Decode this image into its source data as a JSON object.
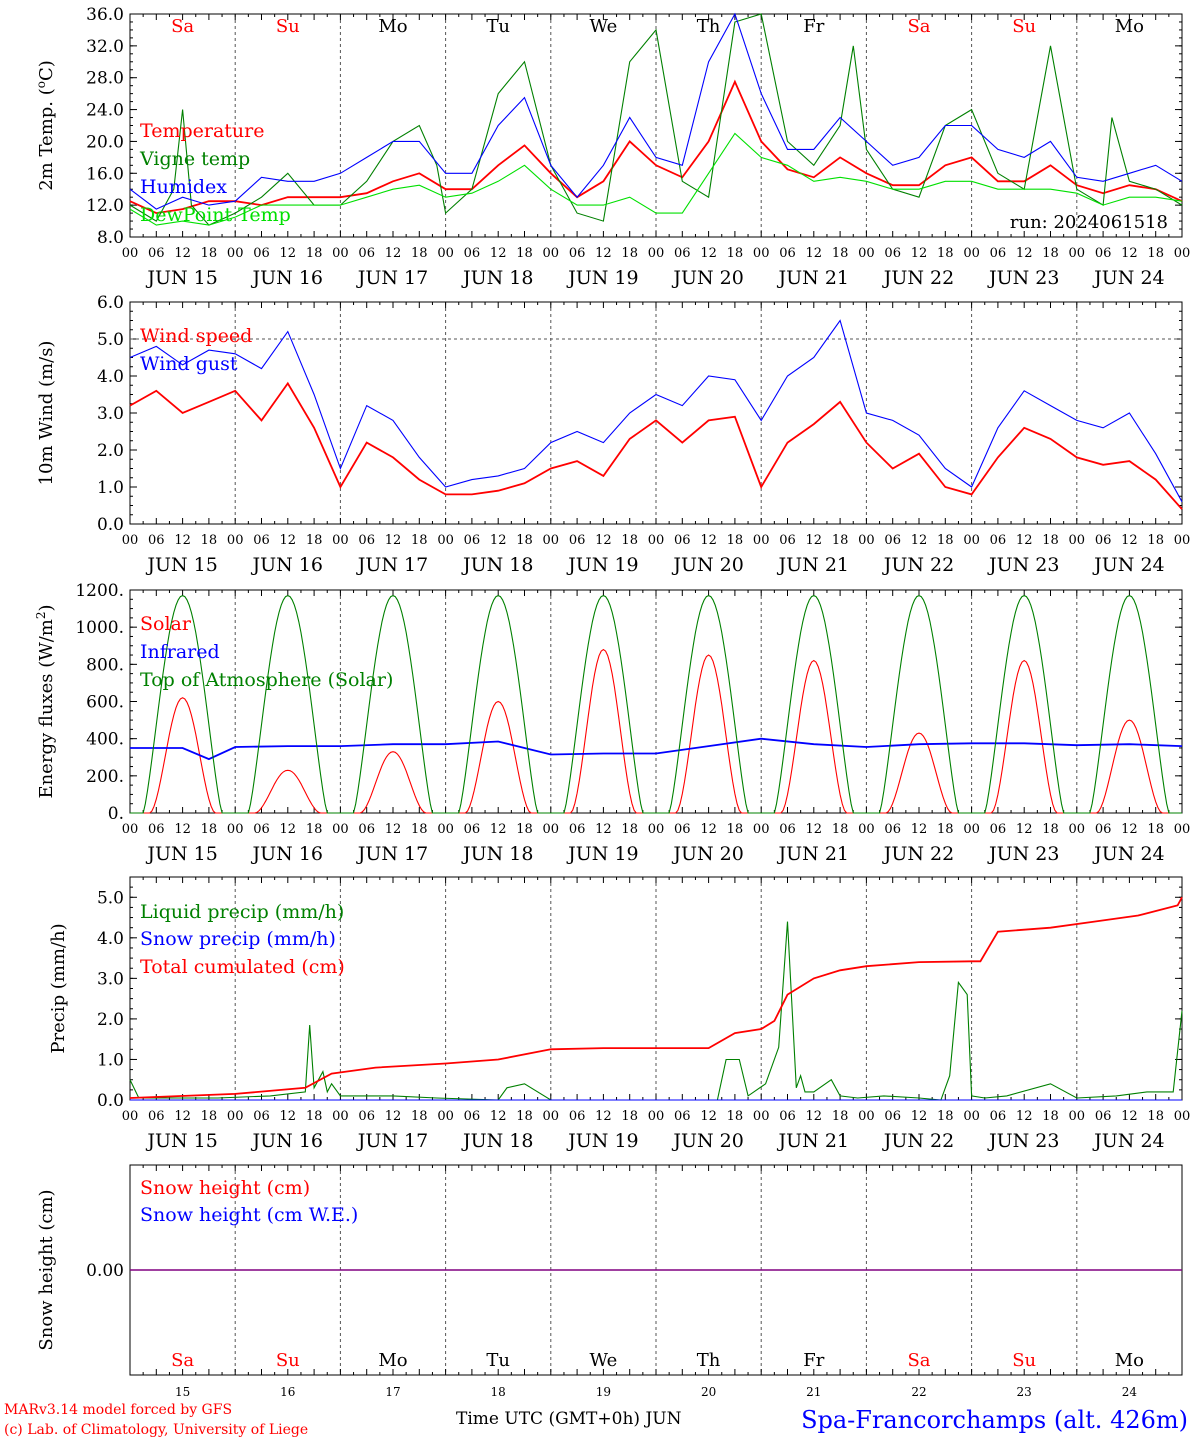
{
  "run": "run: 2024061518",
  "day_labels": [
    "Sa",
    "Su",
    "Mo",
    "Tu",
    "We",
    "Th",
    "Fr",
    "Sa",
    "Su",
    "Mo"
  ],
  "weekend_days": [
    0,
    1,
    7,
    8
  ],
  "date_labels": [
    "JUN 15",
    "JUN 16",
    "JUN 17",
    "JUN 18",
    "JUN 19",
    "JUN 20",
    "JUN 21",
    "JUN 22",
    "JUN 23",
    "JUN 24"
  ],
  "day_numbers": [
    "15",
    "16",
    "17",
    "18",
    "19",
    "20",
    "21",
    "22",
    "23",
    "24"
  ],
  "hour_labels": [
    "00",
    "06",
    "12",
    "18"
  ],
  "footer": {
    "model": "MARv3.14 model forced by GFS",
    "credit": "(c) Lab. of Climatology, University of Liege",
    "xlabel": "Time UTC (GMT+0h) JUN",
    "station": "Spa-Francorchamps (alt. 426m)"
  },
  "colors": {
    "red": "#ff0000",
    "green": "#008000",
    "blue": "#0000ff",
    "lightgreen": "#00e000",
    "purple": "#800080"
  },
  "chart_data": [
    {
      "type": "line",
      "ylabel": "2m Temp. (oC)",
      "ylim": [
        8,
        36
      ],
      "yticks": [
        "8.0",
        "12.0",
        "16.0",
        "20.0",
        "24.0",
        "28.0",
        "32.0",
        "36.0"
      ],
      "x_unit": "hours since 2024-06-15 00 UTC",
      "xlim": [
        0,
        240
      ],
      "series": [
        {
          "name": "Temperature",
          "color": "#ff0000",
          "x": [
            0,
            6,
            12,
            18,
            24,
            30,
            36,
            42,
            48,
            54,
            60,
            66,
            72,
            78,
            84,
            90,
            96,
            102,
            108,
            114,
            120,
            126,
            132,
            138,
            144,
            150,
            156,
            162,
            168,
            174,
            180,
            186,
            192,
            198,
            204,
            210,
            216,
            222,
            228,
            234,
            240
          ],
          "y": [
            12.5,
            11,
            11.5,
            12.5,
            12.5,
            12,
            13,
            13,
            13,
            13.5,
            15,
            16,
            14,
            14,
            17,
            19.5,
            16,
            13,
            15,
            20,
            17,
            15.5,
            20,
            27.5,
            20,
            16.5,
            15.5,
            18,
            16,
            14.5,
            14.5,
            17,
            18,
            15,
            15,
            17,
            14.5,
            13.5,
            14.5,
            14,
            12.5
          ]
        },
        {
          "name": "Vigne temp",
          "color": "#008000",
          "x": [
            0,
            6,
            10,
            12,
            14,
            18,
            24,
            30,
            36,
            42,
            48,
            54,
            60,
            66,
            70,
            72,
            78,
            84,
            90,
            96,
            102,
            108,
            114,
            120,
            126,
            132,
            138,
            144,
            150,
            156,
            162,
            165,
            168,
            174,
            180,
            186,
            192,
            198,
            204,
            210,
            216,
            222,
            224,
            228,
            234,
            240
          ],
          "y": [
            12,
            10,
            14,
            24,
            12,
            9.5,
            11,
            13,
            16,
            12,
            12,
            15,
            20,
            22,
            17,
            11,
            14,
            26,
            30,
            17,
            11,
            10,
            30,
            34,
            15,
            13,
            35,
            36,
            20,
            17,
            22,
            32,
            19,
            14,
            13,
            22,
            24,
            16,
            14,
            32,
            14,
            12,
            23,
            15,
            14,
            12
          ]
        },
        {
          "name": "Humidex",
          "color": "#0000ff",
          "x": [
            0,
            6,
            12,
            18,
            24,
            30,
            36,
            42,
            48,
            54,
            60,
            66,
            72,
            78,
            84,
            90,
            96,
            102,
            108,
            114,
            120,
            126,
            132,
            138,
            144,
            150,
            156,
            162,
            168,
            174,
            180,
            186,
            192,
            198,
            204,
            210,
            216,
            222,
            228,
            234,
            240
          ],
          "y": [
            14,
            11.5,
            13,
            12,
            12.5,
            15.5,
            15,
            15,
            16,
            18,
            20,
            20,
            16,
            16,
            22,
            25.5,
            17,
            13,
            17,
            23,
            18,
            17,
            30,
            36,
            26,
            19,
            19,
            23,
            20,
            17,
            18,
            22,
            22,
            19,
            18,
            20,
            15.5,
            15,
            16,
            17,
            15
          ]
        },
        {
          "name": "DewPoint Temp",
          "color": "#00e000",
          "x": [
            0,
            6,
            12,
            18,
            24,
            30,
            36,
            42,
            48,
            54,
            60,
            66,
            72,
            78,
            84,
            90,
            96,
            102,
            108,
            114,
            120,
            126,
            132,
            138,
            144,
            150,
            156,
            162,
            168,
            174,
            180,
            186,
            192,
            198,
            204,
            210,
            216,
            222,
            228,
            234,
            240
          ],
          "y": [
            11.5,
            9.5,
            10,
            9.5,
            10.5,
            12,
            12,
            12,
            12,
            13,
            14,
            14.5,
            13,
            13.5,
            15,
            17,
            14,
            12,
            12,
            13,
            11,
            11,
            16,
            21,
            18,
            17,
            15,
            15.5,
            15,
            14,
            14,
            15,
            15,
            14,
            14,
            14,
            13.5,
            12,
            13,
            13,
            12.5
          ]
        }
      ]
    },
    {
      "type": "line",
      "ylabel": "10m Wind (m/s)",
      "ylim": [
        0,
        6
      ],
      "yticks": [
        "0.0",
        "1.0",
        "2.0",
        "3.0",
        "4.0",
        "5.0",
        "6.0"
      ],
      "reference_line": 5.0,
      "x_unit": "hours since 2024-06-15 00 UTC",
      "xlim": [
        0,
        240
      ],
      "series": [
        {
          "name": "Wind speed",
          "color": "#ff0000",
          "x": [
            0,
            6,
            12,
            18,
            24,
            30,
            36,
            42,
            48,
            54,
            60,
            66,
            72,
            78,
            84,
            90,
            96,
            102,
            108,
            114,
            120,
            126,
            132,
            138,
            144,
            150,
            156,
            162,
            168,
            174,
            180,
            186,
            192,
            198,
            204,
            210,
            216,
            222,
            228,
            234,
            240
          ],
          "y": [
            3.2,
            3.6,
            3.0,
            3.3,
            3.6,
            2.8,
            3.8,
            2.6,
            1.0,
            2.2,
            1.8,
            1.2,
            0.8,
            0.8,
            0.9,
            1.1,
            1.5,
            1.7,
            1.3,
            2.3,
            2.8,
            2.2,
            2.8,
            2.9,
            1.0,
            2.2,
            2.7,
            3.3,
            2.2,
            1.5,
            1.9,
            1.0,
            0.8,
            1.8,
            2.6,
            2.3,
            1.8,
            1.6,
            1.7,
            1.2,
            0.4
          ]
        },
        {
          "name": "Wind gust",
          "color": "#0000ff",
          "x": [
            0,
            6,
            12,
            18,
            24,
            30,
            36,
            42,
            48,
            54,
            60,
            66,
            72,
            78,
            84,
            90,
            96,
            102,
            108,
            114,
            120,
            126,
            132,
            138,
            144,
            150,
            156,
            162,
            168,
            174,
            180,
            186,
            192,
            198,
            204,
            210,
            216,
            222,
            228,
            234,
            240
          ],
          "y": [
            4.5,
            4.8,
            4.3,
            4.7,
            4.6,
            4.2,
            5.2,
            3.5,
            1.5,
            3.2,
            2.8,
            1.8,
            1.0,
            1.2,
            1.3,
            1.5,
            2.2,
            2.5,
            2.2,
            3.0,
            3.5,
            3.2,
            4.0,
            3.9,
            2.8,
            4.0,
            4.5,
            5.5,
            3.0,
            2.8,
            2.4,
            1.5,
            1.0,
            2.6,
            3.6,
            3.2,
            2.8,
            2.6,
            3.0,
            1.9,
            0.6
          ]
        }
      ]
    },
    {
      "type": "line",
      "ylabel": "Energy fluxes (W/m2)",
      "ylim": [
        0,
        1200
      ],
      "yticks": [
        "0.",
        "200.",
        "400.",
        "600.",
        "800.",
        "1000.",
        "1200."
      ],
      "x_unit": "hours since 2024-06-15 00 UTC",
      "xlim": [
        0,
        240
      ],
      "top_of_atmosphere_peak": 1170,
      "series": [
        {
          "name": "Solar",
          "color": "#ff0000",
          "daily_peaks": [
            620,
            230,
            330,
            600,
            880,
            850,
            820,
            430,
            820,
            500
          ]
        },
        {
          "name": "Infrared",
          "color": "#0000ff",
          "x": [
            0,
            12,
            18,
            24,
            36,
            48,
            60,
            72,
            84,
            96,
            108,
            120,
            132,
            144,
            156,
            168,
            180,
            192,
            204,
            216,
            228,
            240
          ],
          "y": [
            350,
            350,
            290,
            355,
            360,
            360,
            370,
            370,
            385,
            315,
            320,
            320,
            360,
            400,
            370,
            355,
            370,
            375,
            375,
            365,
            370,
            360
          ]
        },
        {
          "name": "Top of Atmosphere (Solar)",
          "color": "#008000",
          "daily_peaks": [
            1170,
            1170,
            1170,
            1170,
            1170,
            1170,
            1170,
            1170,
            1170,
            1170
          ]
        }
      ]
    },
    {
      "type": "line",
      "ylabel": "Precip (mm/h)",
      "ylim": [
        0,
        5.5
      ],
      "yticks": [
        "0.0",
        "1.0",
        "2.0",
        "3.0",
        "4.0",
        "5.0"
      ],
      "x_unit": "hours since 2024-06-15 00 UTC",
      "xlim": [
        0,
        240
      ],
      "series": [
        {
          "name": "Liquid precip (mm/h)",
          "color": "#008000",
          "x": [
            0,
            2,
            10,
            20,
            32,
            40,
            41,
            42,
            44,
            45,
            46,
            48,
            54,
            60,
            70,
            84,
            86,
            90,
            96,
            110,
            134,
            136,
            139,
            141,
            145,
            148,
            150,
            152,
            153,
            154,
            156,
            160,
            162,
            166,
            172,
            180,
            185,
            187,
            189,
            191,
            192,
            195,
            200,
            210,
            216,
            225,
            232,
            238,
            240
          ],
          "y": [
            0.5,
            0.05,
            0.05,
            0.05,
            0.1,
            0.2,
            1.85,
            0.3,
            0.7,
            0.2,
            0.4,
            0.1,
            0.1,
            0.1,
            0.05,
            0.0,
            0.3,
            0.4,
            0.0,
            0.0,
            0.0,
            1.0,
            1.0,
            0.1,
            0.4,
            1.3,
            4.4,
            0.3,
            0.6,
            0.2,
            0.2,
            0.5,
            0.1,
            0.05,
            0.1,
            0.05,
            0.0,
            0.6,
            2.9,
            2.6,
            0.1,
            0.05,
            0.1,
            0.4,
            0.05,
            0.1,
            0.2,
            0.2,
            2.2
          ]
        },
        {
          "name": "Snow precip (mm/h)",
          "color": "#0000ff",
          "x": [
            0,
            240
          ],
          "y": [
            0,
            0
          ]
        },
        {
          "name": "Total cumulated (cm)",
          "color": "#ff0000",
          "x": [
            0,
            24,
            40,
            46,
            56,
            72,
            84,
            96,
            108,
            120,
            132,
            138,
            144,
            147,
            150,
            156,
            162,
            168,
            180,
            192,
            194,
            198,
            210,
            220,
            230,
            239,
            240
          ],
          "y": [
            0.05,
            0.15,
            0.3,
            0.65,
            0.8,
            0.9,
            1.0,
            1.25,
            1.28,
            1.28,
            1.28,
            1.65,
            1.75,
            1.95,
            2.6,
            3.0,
            3.2,
            3.3,
            3.4,
            3.42,
            3.42,
            4.15,
            4.25,
            4.4,
            4.55,
            4.8,
            5.0
          ]
        }
      ]
    },
    {
      "type": "line",
      "ylabel": "Snow height (cm)",
      "yticks": [
        "0.00"
      ],
      "x_unit": "hours since 2024-06-15 00 UTC",
      "xlim": [
        0,
        240
      ],
      "series": [
        {
          "name": "Snow height (cm)",
          "color": "#ff0000",
          "x": [
            0,
            240
          ],
          "y": [
            0,
            0
          ]
        },
        {
          "name": "Snow height (cm W.E.)",
          "color": "#0000ff",
          "x": [
            0,
            240
          ],
          "y": [
            0,
            0
          ]
        }
      ]
    }
  ]
}
